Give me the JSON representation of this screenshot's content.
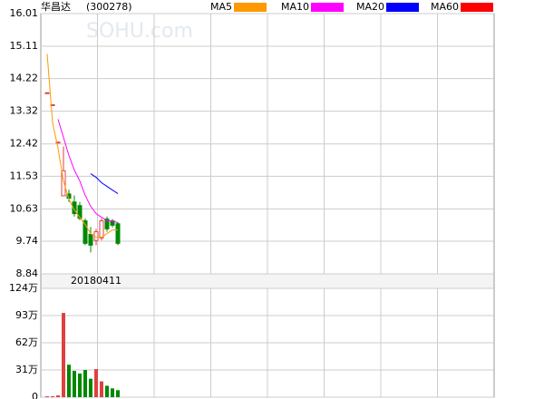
{
  "title": "华昌达",
  "code": "(300278)",
  "watermark": "SOHU.com",
  "chart_data": [
    {
      "type": "candlestick",
      "categories": [
        null,
        null,
        null,
        null,
        null,
        null,
        null,
        null,
        null,
        "20180411",
        null,
        null,
        null,
        null
      ],
      "open": [
        13.83,
        13.5,
        12.47,
        10.99,
        11.04,
        10.82,
        10.72,
        10.3,
        9.93,
        9.76,
        9.83,
        10.35,
        10.3,
        10.22
      ],
      "high": [
        13.83,
        13.5,
        12.47,
        12.35,
        11.16,
        11.0,
        10.82,
        10.37,
        10.13,
        10.08,
        10.37,
        10.42,
        10.35,
        10.27
      ],
      "low": [
        13.83,
        13.5,
        12.47,
        10.99,
        10.82,
        10.42,
        10.32,
        9.63,
        9.43,
        9.63,
        9.76,
        10.0,
        10.12,
        9.63
      ],
      "close": [
        13.83,
        13.5,
        12.47,
        11.68,
        10.92,
        10.5,
        10.37,
        9.68,
        9.63,
        10.0,
        10.3,
        10.08,
        10.18,
        9.68
      ],
      "up_color": "#e04040",
      "down_color": "#008800",
      "ylim": [
        8.84,
        16.01
      ],
      "yticks": [
        16.01,
        15.11,
        14.22,
        13.32,
        12.42,
        11.53,
        10.63,
        9.74,
        8.84
      ],
      "grid": true,
      "series": [
        {
          "name": "MA5",
          "color": "#ff9900",
          "values": [
            14.9,
            13.0,
            12.3,
            11.4,
            10.9,
            10.6,
            10.4,
            10.2,
            9.95,
            9.85,
            9.85,
            9.95,
            10.05,
            10.05
          ]
        },
        {
          "name": "MA10",
          "color": "#ff00ff",
          "values": [
            null,
            null,
            13.1,
            12.6,
            12.1,
            11.7,
            11.4,
            11.0,
            10.7,
            10.5,
            10.4,
            10.3,
            10.3,
            10.25
          ]
        },
        {
          "name": "MA20",
          "color": "#0000ff",
          "values": [
            null,
            null,
            null,
            null,
            null,
            null,
            null,
            null,
            11.6,
            11.5,
            11.35,
            11.25,
            11.15,
            11.05
          ]
        },
        {
          "name": "MA60",
          "color": "#ff0000",
          "values": [
            null,
            null,
            null,
            null,
            null,
            null,
            null,
            null,
            null,
            null,
            null,
            null,
            null,
            null
          ]
        }
      ]
    },
    {
      "type": "bar",
      "values": [
        1,
        1,
        2,
        96,
        37,
        30,
        27,
        31,
        21,
        32,
        18,
        13,
        10,
        8
      ],
      "ylim": [
        0,
        124
      ],
      "yticks": [
        {
          "value": 124,
          "label": "124万"
        },
        {
          "value": 93,
          "label": "93万"
        },
        {
          "value": 62,
          "label": "62万"
        },
        {
          "value": 31,
          "label": "31万"
        },
        0
      ],
      "grid": true
    }
  ]
}
